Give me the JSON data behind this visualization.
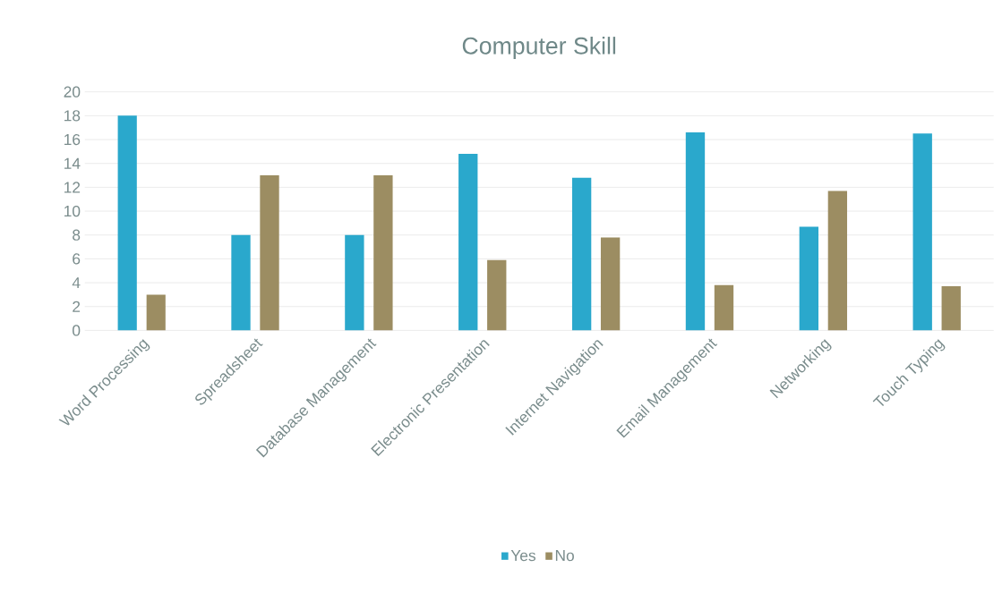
{
  "chart_data": {
    "type": "bar",
    "title": "Computer Skill",
    "categories": [
      "Word Processing",
      "Spreadsheet",
      "Database Management",
      "Electronic Presentation",
      "Internet Navigation",
      "Email Management",
      "Networking",
      "Touch Typing"
    ],
    "series": [
      {
        "name": "Yes",
        "color": "#2aa8cc",
        "values": [
          18,
          8,
          8,
          14.8,
          12.8,
          16.6,
          8.7,
          16.5
        ]
      },
      {
        "name": "No",
        "color": "#9c8d62",
        "values": [
          3,
          13,
          13,
          5.9,
          7.8,
          3.8,
          11.7,
          3.7
        ]
      }
    ],
    "ylim": [
      0,
      20
    ],
    "yticks": [
      0,
      2,
      4,
      6,
      8,
      10,
      12,
      14,
      16,
      18,
      20
    ],
    "grid": "y",
    "legend": "bottom"
  }
}
